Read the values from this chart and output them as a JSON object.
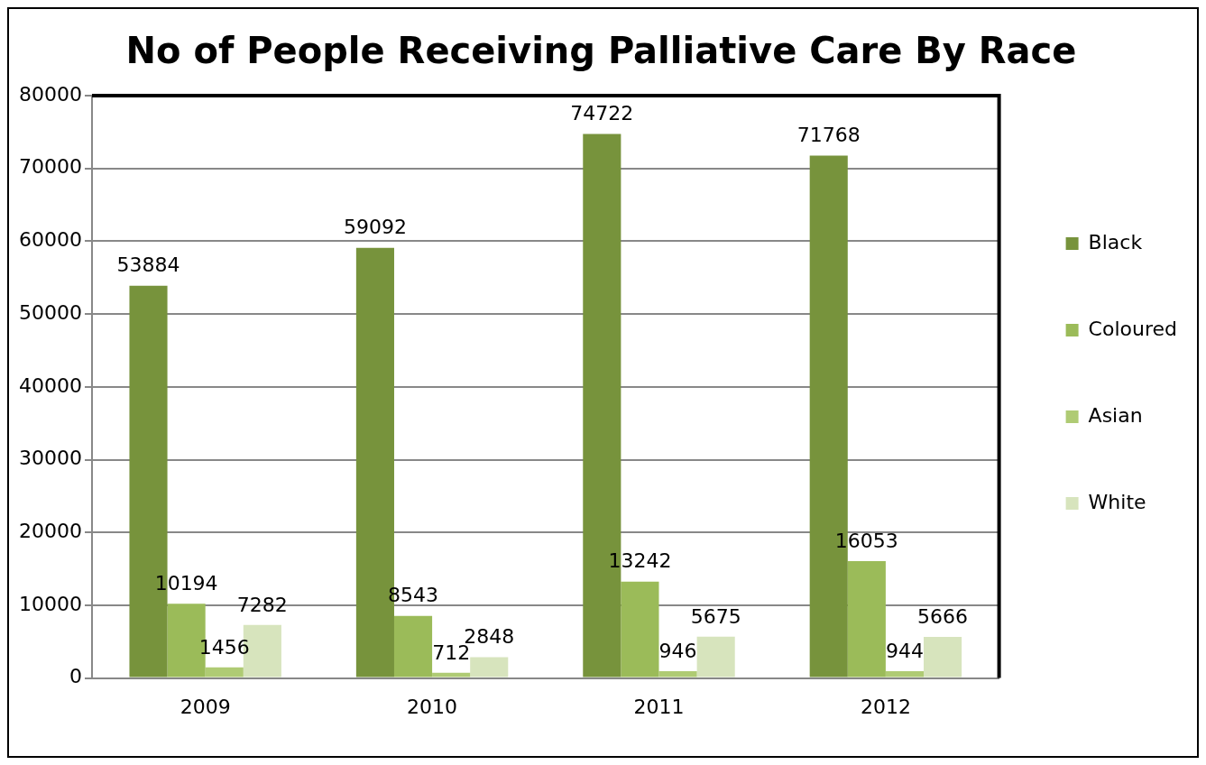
{
  "chart_data": {
    "type": "bar",
    "title": "No of People Receiving Palliative Care By Race",
    "categories": [
      "2009",
      "2010",
      "2011",
      "2012"
    ],
    "series": [
      {
        "name": "Black",
        "color": "#77933c",
        "values": [
          53884,
          59092,
          74722,
          71768
        ]
      },
      {
        "name": "Coloured",
        "color": "#9bbb59",
        "values": [
          10194,
          8543,
          13242,
          16053
        ]
      },
      {
        "name": "Asian",
        "color": "#afcb74",
        "values": [
          1456,
          712,
          946,
          944
        ]
      },
      {
        "name": "White",
        "color": "#d7e4bd",
        "values": [
          7282,
          2848,
          5675,
          5666
        ]
      }
    ],
    "ylim": [
      0,
      80000
    ],
    "yticks": [
      0,
      10000,
      20000,
      30000,
      40000,
      50000,
      60000,
      70000,
      80000
    ],
    "grid": "y",
    "legend": "right",
    "data_labels": true
  }
}
